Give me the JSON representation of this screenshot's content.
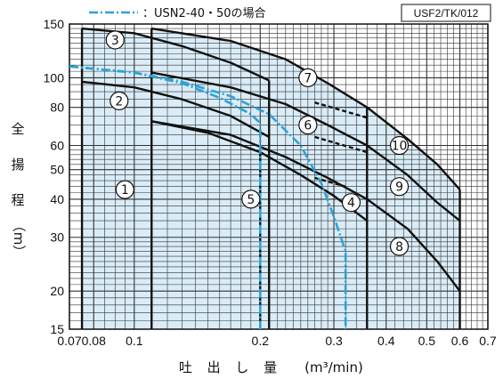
{
  "chart_data": {
    "type": "line",
    "code": "USF2/TK/012",
    "legend_dashed": "：USN2-40・50の場合",
    "ylabel": [
      "全",
      "揚",
      "程",
      "（m）"
    ],
    "xlabel_jp": "吐 出 し 量",
    "xlabel_unit": "(m³/min)",
    "xscale": "log",
    "yscale": "log",
    "xlim": [
      0.07,
      0.7
    ],
    "ylim": [
      15,
      150
    ],
    "x_tick_labels": [
      {
        "v": 0.07,
        "t": "0.07"
      },
      {
        "v": 0.08,
        "t": "0.08"
      },
      {
        "v": 0.1,
        "t": "0.1"
      },
      {
        "v": 0.2,
        "t": "0.2"
      },
      {
        "v": 0.3,
        "t": "0.3"
      },
      {
        "v": 0.4,
        "t": "0.4"
      },
      {
        "v": 0.5,
        "t": "0.5"
      },
      {
        "v": 0.6,
        "t": "0.6"
      },
      {
        "v": 0.7,
        "t": "0.7"
      }
    ],
    "y_tick_labels": [
      {
        "v": 15,
        "t": "15"
      },
      {
        "v": 20,
        "t": "20"
      },
      {
        "v": 30,
        "t": "30"
      },
      {
        "v": 40,
        "t": "40"
      },
      {
        "v": 50,
        "t": "50"
      },
      {
        "v": 60,
        "t": "60"
      },
      {
        "v": 80,
        "t": "80"
      },
      {
        "v": 100,
        "t": "100"
      },
      {
        "v": 150,
        "t": "150"
      }
    ],
    "grid": true,
    "curves": [
      {
        "points": [
          [
            0.075,
            145
          ],
          [
            0.1,
            140
          ],
          [
            0.13,
            127
          ],
          [
            0.17,
            112
          ],
          [
            0.21,
            98
          ]
        ]
      },
      {
        "points": [
          [
            0.075,
            97
          ],
          [
            0.1,
            93
          ],
          [
            0.13,
            85
          ],
          [
            0.17,
            75
          ],
          [
            0.21,
            64
          ]
        ]
      },
      {
        "points": [
          [
            0.11,
            72
          ],
          [
            0.15,
            66
          ],
          [
            0.2,
            57
          ],
          [
            0.25,
            48
          ],
          [
            0.3,
            41
          ],
          [
            0.36,
            34
          ]
        ]
      },
      {
        "points": [
          [
            0.11,
            145
          ],
          [
            0.17,
            132
          ],
          [
            0.23,
            115
          ],
          [
            0.29,
            96
          ],
          [
            0.36,
            80
          ],
          [
            0.45,
            63
          ],
          [
            0.53,
            52
          ],
          [
            0.6,
            43
          ]
        ]
      },
      {
        "points": [
          [
            0.11,
            104
          ],
          [
            0.17,
            93
          ],
          [
            0.23,
            82
          ],
          [
            0.29,
            70
          ],
          [
            0.36,
            60
          ],
          [
            0.45,
            48
          ],
          [
            0.53,
            39
          ],
          [
            0.6,
            34
          ]
        ]
      },
      {
        "points": [
          [
            0.11,
            72
          ],
          [
            0.17,
            65
          ],
          [
            0.23,
            55
          ],
          [
            0.29,
            47
          ],
          [
            0.36,
            40
          ],
          [
            0.45,
            32
          ],
          [
            0.53,
            25
          ],
          [
            0.6,
            20
          ]
        ]
      }
    ],
    "dashed_links": [
      {
        "points": [
          [
            0.27,
            83
          ],
          [
            0.36,
            74
          ]
        ]
      },
      {
        "points": [
          [
            0.27,
            64
          ],
          [
            0.36,
            57
          ]
        ]
      },
      {
        "points": [
          [
            0.27,
            47
          ],
          [
            0.32,
            44
          ]
        ]
      }
    ],
    "dash_dot_series": [
      {
        "points": [
          [
            0.07,
            109
          ],
          [
            0.1,
            104
          ],
          [
            0.13,
            96
          ],
          [
            0.16,
            86
          ],
          [
            0.19,
            76
          ],
          [
            0.2,
            71
          ],
          [
            0.2,
            15
          ]
        ]
      },
      {
        "points": [
          [
            0.07,
            109
          ],
          [
            0.1,
            104
          ],
          [
            0.13,
            97
          ],
          [
            0.17,
            87
          ],
          [
            0.21,
            76
          ],
          [
            0.25,
            60
          ],
          [
            0.28,
            45
          ],
          [
            0.3,
            35
          ],
          [
            0.32,
            27
          ],
          [
            0.32,
            15
          ]
        ]
      }
    ],
    "regions": [
      {
        "points": [
          [
            0.075,
            15
          ],
          [
            0.075,
            145
          ],
          [
            0.1,
            140
          ],
          [
            0.13,
            127
          ],
          [
            0.17,
            112
          ],
          [
            0.21,
            98
          ],
          [
            0.21,
            15
          ]
        ]
      },
      {
        "points": [
          [
            0.11,
            15
          ],
          [
            0.11,
            72
          ],
          [
            0.15,
            66
          ],
          [
            0.2,
            57
          ],
          [
            0.25,
            48
          ],
          [
            0.3,
            41
          ],
          [
            0.36,
            34
          ],
          [
            0.36,
            15
          ]
        ]
      },
      {
        "points": [
          [
            0.11,
            15
          ],
          [
            0.11,
            145
          ],
          [
            0.17,
            132
          ],
          [
            0.23,
            115
          ],
          [
            0.29,
            96
          ],
          [
            0.36,
            80
          ],
          [
            0.45,
            63
          ],
          [
            0.53,
            52
          ],
          [
            0.6,
            43
          ],
          [
            0.6,
            15
          ]
        ]
      }
    ],
    "vertical_edges": [
      {
        "x": 0.075,
        "y": [
          15,
          145
        ]
      },
      {
        "x": 0.11,
        "y": [
          15,
          145
        ]
      },
      {
        "x": 0.21,
        "y": [
          15,
          98
        ]
      },
      {
        "x": 0.36,
        "y": [
          15,
          80
        ]
      },
      {
        "x": 0.6,
        "y": [
          15,
          43
        ]
      },
      {
        "x": 0.2,
        "y": [
          15,
          60
        ]
      }
    ],
    "number_labels": [
      {
        "id": "1",
        "x": 0.095,
        "y": 43
      },
      {
        "id": "2",
        "x": 0.092,
        "y": 84
      },
      {
        "id": "3",
        "x": 0.09,
        "y": 133
      },
      {
        "id": "4",
        "x": 0.33,
        "y": 39
      },
      {
        "id": "5",
        "x": 0.19,
        "y": 40
      },
      {
        "id": "6",
        "x": 0.26,
        "y": 70
      },
      {
        "id": "7",
        "x": 0.26,
        "y": 100
      },
      {
        "id": "8",
        "x": 0.43,
        "y": 28
      },
      {
        "id": "9",
        "x": 0.43,
        "y": 44
      },
      {
        "id": "10",
        "x": 0.43,
        "y": 60
      }
    ],
    "colors": {
      "fill": "#d9ecf7",
      "curve": "#111111",
      "dashdot": "#2aa3d8",
      "grid": "#333333"
    }
  }
}
